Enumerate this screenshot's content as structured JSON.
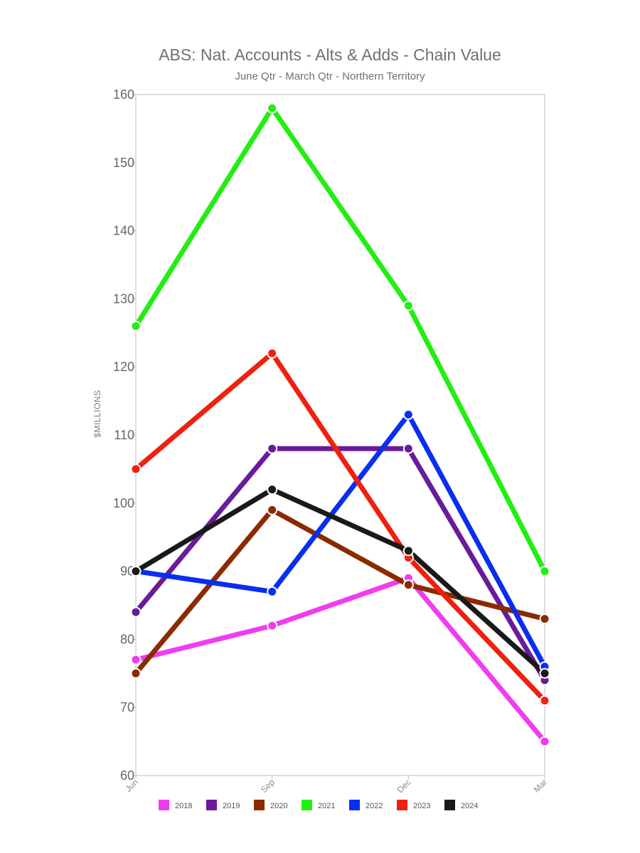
{
  "chart_data": {
    "type": "line",
    "title": "ABS: Nat. Accounts - Alts & Adds - Chain Value",
    "subtitle": "June Qtr - March Qtr - Northern Territory",
    "xlabel": "",
    "ylabel": "$MILLIONS",
    "categories": [
      "Jun",
      "Sep",
      "Dec",
      "Mar"
    ],
    "ylim": [
      60,
      160
    ],
    "yticks": [
      60,
      70,
      80,
      90,
      100,
      110,
      120,
      130,
      140,
      150,
      160
    ],
    "grid": false,
    "legend_position": "bottom",
    "series": [
      {
        "name": "2018",
        "color": "#f03cf0",
        "values": [
          77,
          82,
          89,
          65
        ]
      },
      {
        "name": "2019",
        "color": "#6a1b9a",
        "values": [
          84,
          108,
          108,
          74
        ]
      },
      {
        "name": "2020",
        "color": "#8b2a00",
        "values": [
          75,
          99,
          88,
          83
        ]
      },
      {
        "name": "2021",
        "color": "#22ee11",
        "values": [
          126,
          158,
          129,
          90
        ]
      },
      {
        "name": "2022",
        "color": "#0a2ef0",
        "values": [
          90,
          87,
          113,
          76
        ]
      },
      {
        "name": "2023",
        "color": "#f0200e",
        "values": [
          105,
          122,
          92,
          71
        ]
      },
      {
        "name": "2024",
        "color": "#1a1a1a",
        "values": [
          90,
          102,
          93,
          75
        ]
      }
    ]
  }
}
